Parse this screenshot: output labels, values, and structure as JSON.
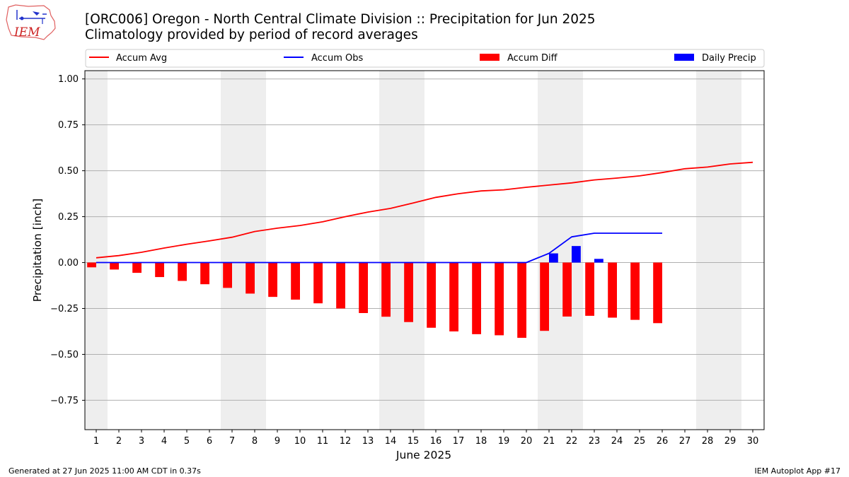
{
  "header": {
    "title": "[ORC006] Oregon - North Central Climate Division :: Precipitation for Jun 2025",
    "subtitle": "Climatology provided by period of record averages",
    "logo_text": "IEM"
  },
  "footer": {
    "left": "Generated at 27 Jun 2025 11:00 AM CDT in 0.37s",
    "right": "IEM Autoplot App #17"
  },
  "colors": {
    "avg": "#ff0000",
    "obs": "#0000ff",
    "diff": "#ff0000",
    "daily": "#0000ff",
    "weekend_shade": "#eeeeee",
    "grid": "#b0b0b0"
  },
  "chart_data": {
    "type": "bar",
    "title": "[ORC006] Oregon - North Central Climate Division :: Precipitation for Jun 2025",
    "xlabel": "June 2025",
    "ylabel": "Precipitation [inch]",
    "ylim": [
      -0.91,
      1.045
    ],
    "xlim": [
      0.5,
      30.5
    ],
    "grid": "horizontal",
    "legend_position": "top",
    "yticks": [
      1.0,
      0.75,
      0.5,
      0.25,
      0.0,
      -0.25,
      -0.5,
      -0.75
    ],
    "ytick_labels": [
      "1.00",
      "0.75",
      "0.50",
      "0.25",
      "0.00",
      "−0.25",
      "−0.50",
      "−0.75"
    ],
    "x": [
      1,
      2,
      3,
      4,
      5,
      6,
      7,
      8,
      9,
      10,
      11,
      12,
      13,
      14,
      15,
      16,
      17,
      18,
      19,
      20,
      21,
      22,
      23,
      24,
      25,
      26,
      27,
      28,
      29,
      30
    ],
    "weekend_days": [
      1,
      7,
      8,
      14,
      15,
      21,
      22,
      28,
      29
    ],
    "legend": [
      "Accum Avg",
      "Accum Obs",
      "Accum Diff",
      "Daily Precip"
    ],
    "series": [
      {
        "name": "Accum Avg",
        "kind": "line",
        "x": [
          1,
          2,
          3,
          4,
          5,
          6,
          7,
          8,
          9,
          10,
          11,
          12,
          13,
          14,
          15,
          16,
          17,
          18,
          19,
          20,
          21,
          22,
          23,
          24,
          25,
          26,
          27,
          28,
          29,
          30
        ],
        "values": [
          0.026,
          0.038,
          0.056,
          0.079,
          0.1,
          0.118,
          0.138,
          0.169,
          0.187,
          0.202,
          0.222,
          0.25,
          0.275,
          0.295,
          0.324,
          0.355,
          0.375,
          0.39,
          0.396,
          0.41,
          0.422,
          0.434,
          0.45,
          0.46,
          0.472,
          0.49,
          0.511,
          0.52,
          0.537,
          0.546
        ]
      },
      {
        "name": "Accum Obs",
        "kind": "line",
        "x": [
          1,
          2,
          3,
          4,
          5,
          6,
          7,
          8,
          9,
          10,
          11,
          12,
          13,
          14,
          15,
          16,
          17,
          18,
          19,
          20,
          21,
          22,
          23,
          24,
          25,
          26
        ],
        "values": [
          0,
          0,
          0,
          0,
          0,
          0,
          0,
          0,
          0,
          0,
          0,
          0,
          0,
          0,
          0,
          0,
          0,
          0,
          0,
          0,
          0.05,
          0.14,
          0.16,
          0.16,
          0.16,
          0.16
        ]
      },
      {
        "name": "Accum Diff",
        "kind": "bar",
        "x": [
          1,
          2,
          3,
          4,
          5,
          6,
          7,
          8,
          9,
          10,
          11,
          12,
          13,
          14,
          15,
          16,
          17,
          18,
          19,
          20,
          21,
          22,
          23,
          24,
          25,
          26
        ],
        "values": [
          -0.026,
          -0.038,
          -0.056,
          -0.079,
          -0.1,
          -0.118,
          -0.138,
          -0.169,
          -0.187,
          -0.202,
          -0.222,
          -0.25,
          -0.275,
          -0.295,
          -0.324,
          -0.355,
          -0.375,
          -0.39,
          -0.396,
          -0.41,
          -0.372,
          -0.294,
          -0.29,
          -0.3,
          -0.312,
          -0.33
        ]
      },
      {
        "name": "Daily Precip",
        "kind": "bar",
        "x": [
          21,
          22,
          23
        ],
        "values": [
          0.05,
          0.09,
          0.02
        ]
      }
    ]
  }
}
